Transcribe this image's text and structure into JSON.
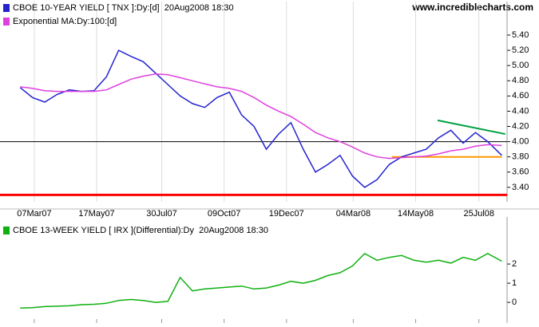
{
  "chart_data": [
    {
      "type": "line",
      "source": "www.incrediblecharts.com",
      "x": [
        "2007-02-19",
        "2007-03-05",
        "2007-03-19",
        "2007-04-02",
        "2007-04-16",
        "2007-04-30",
        "2007-05-14",
        "2007-05-28",
        "2007-06-11",
        "2007-06-25",
        "2007-07-09",
        "2007-07-23",
        "2007-08-06",
        "2007-08-20",
        "2007-09-03",
        "2007-09-17",
        "2007-10-01",
        "2007-10-15",
        "2007-10-29",
        "2007-11-12",
        "2007-11-26",
        "2007-12-10",
        "2007-12-24",
        "2008-01-07",
        "2008-01-21",
        "2008-02-04",
        "2008-02-18",
        "2008-03-03",
        "2008-03-17",
        "2008-03-31",
        "2008-04-14",
        "2008-04-28",
        "2008-05-12",
        "2008-05-26",
        "2008-06-09",
        "2008-06-23",
        "2008-07-07",
        "2008-07-21",
        "2008-08-04",
        "2008-08-20"
      ],
      "series": [
        {
          "name": "CBOE 10-YEAR YIELD [ TNX ]:Dy:[d]  20Aug2008 18:30",
          "color": "#2323d0",
          "values": [
            4.71,
            4.58,
            4.52,
            4.62,
            4.68,
            4.66,
            4.67,
            4.85,
            5.2,
            5.12,
            5.05,
            4.9,
            4.75,
            4.6,
            4.5,
            4.45,
            4.58,
            4.65,
            4.35,
            4.2,
            3.9,
            4.1,
            4.25,
            3.9,
            3.6,
            3.7,
            3.82,
            3.55,
            3.4,
            3.5,
            3.7,
            3.8,
            3.85,
            3.9,
            4.05,
            4.15,
            3.98,
            4.12,
            4.0,
            3.82
          ]
        },
        {
          "name": "Exponential MA:Dy:100:[d]",
          "color": "#e040e0",
          "values": [
            4.72,
            4.7,
            4.67,
            4.66,
            4.66,
            4.66,
            4.66,
            4.68,
            4.75,
            4.82,
            4.86,
            4.89,
            4.88,
            4.84,
            4.8,
            4.76,
            4.72,
            4.7,
            4.66,
            4.58,
            4.48,
            4.4,
            4.33,
            4.23,
            4.12,
            4.05,
            4.0,
            3.93,
            3.85,
            3.8,
            3.78,
            3.79,
            3.8,
            3.81,
            3.84,
            3.88,
            3.9,
            3.94,
            3.96,
            3.95
          ]
        }
      ],
      "reference_lines": [
        {
          "color": "#000000",
          "y": 4.0
        },
        {
          "color": "#ff0000",
          "y": 3.3
        },
        {
          "color": "#ff9900",
          "x": [
            "2008-04-17",
            "2008-08-20"
          ],
          "y": [
            3.8,
            3.8
          ]
        },
        {
          "color": "#00a040",
          "x": [
            "2008-06-08",
            "2008-08-24"
          ],
          "y": [
            4.28,
            4.1
          ]
        }
      ],
      "xlim": [
        "2007-01-27",
        "2008-08-26"
      ],
      "xticks": [
        {
          "value": "2007-03-07",
          "label": "07Mar07"
        },
        {
          "value": "2007-05-17",
          "label": "17May07"
        },
        {
          "value": "2007-07-30",
          "label": "30Jul07"
        },
        {
          "value": "2007-10-09",
          "label": "09Oct07"
        },
        {
          "value": "2007-12-19",
          "label": "19Dec07"
        },
        {
          "value": "2008-03-04",
          "label": "04Mar08"
        },
        {
          "value": "2008-05-14",
          "label": "14May08"
        },
        {
          "value": "2008-07-25",
          "label": "25Jul08"
        }
      ],
      "ylim": [
        3.21,
        5.84
      ],
      "yticks": [
        {
          "value": 3.4,
          "label": "3.40"
        },
        {
          "value": 3.6,
          "label": "3.60"
        },
        {
          "value": 3.8,
          "label": "3.80"
        },
        {
          "value": 4.0,
          "label": "4.00"
        },
        {
          "value": 4.2,
          "label": "4.20"
        },
        {
          "value": 4.4,
          "label": "4.40"
        },
        {
          "value": 4.6,
          "label": "4.60"
        },
        {
          "value": 4.8,
          "label": "4.80"
        },
        {
          "value": 5.0,
          "label": "5.00"
        },
        {
          "value": 5.2,
          "label": "5.20"
        },
        {
          "value": 5.4,
          "label": "5.40"
        }
      ],
      "grid": true
    },
    {
      "type": "line",
      "x": [
        "2007-02-19",
        "2007-03-05",
        "2007-03-19",
        "2007-04-02",
        "2007-04-16",
        "2007-04-30",
        "2007-05-14",
        "2007-05-28",
        "2007-06-11",
        "2007-06-25",
        "2007-07-09",
        "2007-07-23",
        "2007-08-06",
        "2007-08-20",
        "2007-09-03",
        "2007-09-17",
        "2007-10-01",
        "2007-10-15",
        "2007-10-29",
        "2007-11-12",
        "2007-11-26",
        "2007-12-10",
        "2007-12-24",
        "2008-01-07",
        "2008-01-21",
        "2008-02-04",
        "2008-02-18",
        "2008-03-03",
        "2008-03-17",
        "2008-03-31",
        "2008-04-14",
        "2008-04-28",
        "2008-05-12",
        "2008-05-26",
        "2008-06-09",
        "2008-06-23",
        "2008-07-07",
        "2008-07-21",
        "2008-08-04",
        "2008-08-20"
      ],
      "series": [
        {
          "name": "CBOE 13-WEEK YIELD [ IRX ](Differential):Dy  20Aug2008 18:30",
          "color": "#10b010",
          "values": [
            -0.3,
            -0.28,
            -0.22,
            -0.2,
            -0.18,
            -0.12,
            -0.1,
            -0.05,
            0.1,
            0.15,
            0.1,
            0.0,
            0.05,
            1.3,
            0.6,
            0.7,
            0.75,
            0.8,
            0.85,
            0.7,
            0.75,
            0.9,
            1.1,
            1.0,
            1.15,
            1.4,
            1.55,
            1.9,
            2.55,
            2.2,
            2.35,
            2.45,
            2.2,
            2.1,
            2.2,
            2.05,
            2.35,
            2.2,
            2.55,
            2.15
          ]
        }
      ],
      "xlim": [
        "2007-01-27",
        "2008-08-26"
      ],
      "ylim": [
        -1.08,
        4.46
      ],
      "yticks": [
        0,
        1,
        2
      ],
      "grid": false
    }
  ]
}
